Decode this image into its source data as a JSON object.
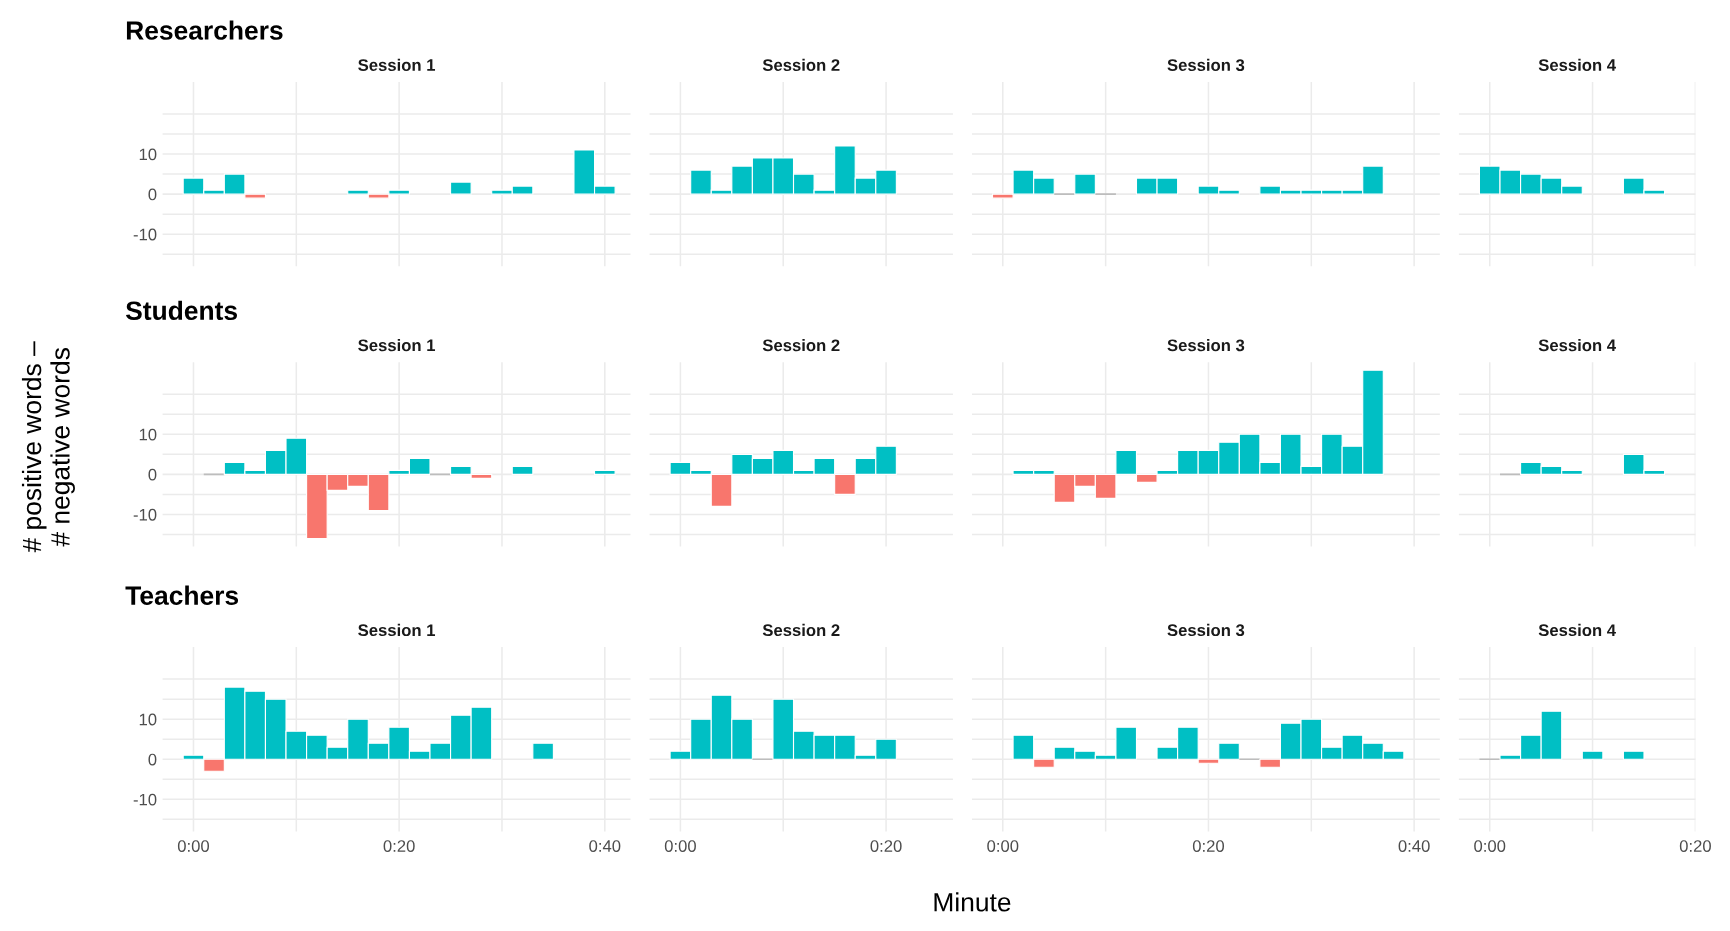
{
  "chart_data": [
    {
      "type": "bar",
      "title": "Session 1",
      "annotations": [
        "Researchers"
      ],
      "tick_labels": "y",
      "grid": true,
      "xlim": [
        -3,
        42.5
      ],
      "xticks": [
        {
          "value": 0,
          "label": null
        },
        {
          "value": 10,
          "label": null
        },
        {
          "value": 20,
          "label": null
        },
        {
          "value": 30,
          "label": null
        },
        {
          "value": 40,
          "label": null
        }
      ],
      "ylim": [
        -18,
        28
      ],
      "yticks": [
        {
          "value": -15,
          "label": null
        },
        -10,
        {
          "value": -5,
          "label": null
        },
        0,
        {
          "value": 5,
          "label": null
        },
        10,
        {
          "value": 15,
          "label": null
        },
        {
          "value": 20,
          "label": null
        }
      ],
      "x": [
        0,
        2,
        4,
        6,
        16,
        18,
        20,
        26,
        30,
        32,
        38,
        40
      ],
      "values": [
        4,
        1,
        5,
        -1,
        1,
        -1,
        1,
        3,
        1,
        2,
        11,
        2
      ],
      "colors": [
        "#00bfc4",
        "#00bfc4",
        "#00bfc4",
        "#f8766d",
        "#00bfc4",
        "#f8766d",
        "#00bfc4",
        "#00bfc4",
        "#00bfc4",
        "#00bfc4",
        "#00bfc4",
        "#00bfc4"
      ]
    },
    {
      "type": "bar",
      "title": "Session 2",
      "tick_labels": false,
      "grid": true,
      "xlim": [
        -3,
        26.5
      ],
      "xticks": [
        {
          "value": 0,
          "label": null
        },
        {
          "value": 10,
          "label": null
        },
        {
          "value": 20,
          "label": null
        }
      ],
      "ylim": [
        -18,
        28
      ],
      "yticks": [
        {
          "value": -15,
          "label": null
        },
        {
          "value": -10,
          "label": null
        },
        {
          "value": -5,
          "label": null
        },
        {
          "value": 0,
          "label": null
        },
        {
          "value": 5,
          "label": null
        },
        {
          "value": 10,
          "label": null
        },
        {
          "value": 15,
          "label": null
        },
        {
          "value": 20,
          "label": null
        }
      ],
      "x": [
        2,
        4,
        6,
        8,
        10,
        12,
        14,
        16,
        18,
        20
      ],
      "values": [
        6,
        1,
        7,
        9,
        9,
        5,
        1,
        12,
        4,
        6
      ],
      "colors": [
        "#00bfc4",
        "#00bfc4",
        "#00bfc4",
        "#00bfc4",
        "#00bfc4",
        "#00bfc4",
        "#00bfc4",
        "#00bfc4",
        "#00bfc4",
        "#00bfc4"
      ]
    },
    {
      "type": "bar",
      "title": "Session 3",
      "tick_labels": false,
      "grid": true,
      "xlim": [
        -3,
        42.5
      ],
      "xticks": [
        {
          "value": 0,
          "label": null
        },
        {
          "value": 10,
          "label": null
        },
        {
          "value": 20,
          "label": null
        },
        {
          "value": 30,
          "label": null
        },
        {
          "value": 40,
          "label": null
        }
      ],
      "ylim": [
        -18,
        28
      ],
      "yticks": [
        {
          "value": -15,
          "label": null
        },
        {
          "value": -10,
          "label": null
        },
        {
          "value": -5,
          "label": null
        },
        {
          "value": 0,
          "label": null
        },
        {
          "value": 5,
          "label": null
        },
        {
          "value": 10,
          "label": null
        },
        {
          "value": 15,
          "label": null
        },
        {
          "value": 20,
          "label": null
        }
      ],
      "x": [
        0,
        2,
        4,
        6,
        8,
        10,
        14,
        16,
        20,
        22,
        26,
        28,
        30,
        32,
        34,
        36
      ],
      "values": [
        -1,
        6,
        4,
        0,
        5,
        0,
        4,
        4,
        2,
        1,
        2,
        1,
        1,
        1,
        1,
        7
      ],
      "colors": [
        "#f8766d",
        "#00bfc4",
        "#00bfc4",
        "#bdbdbd",
        "#00bfc4",
        "#bdbdbd",
        "#00bfc4",
        "#00bfc4",
        "#00bfc4",
        "#00bfc4",
        "#00bfc4",
        "#00bfc4",
        "#00bfc4",
        "#00bfc4",
        "#00bfc4",
        "#00bfc4"
      ]
    },
    {
      "type": "bar",
      "title": "Session 4",
      "tick_labels": false,
      "grid": true,
      "xlim": [
        -3,
        20
      ],
      "xticks": [
        {
          "value": 0,
          "label": null
        },
        {
          "value": 10,
          "label": null
        },
        {
          "value": 20,
          "label": null
        }
      ],
      "ylim": [
        -18,
        28
      ],
      "yticks": [
        {
          "value": -15,
          "label": null
        },
        {
          "value": -10,
          "label": null
        },
        {
          "value": -5,
          "label": null
        },
        {
          "value": 0,
          "label": null
        },
        {
          "value": 5,
          "label": null
        },
        {
          "value": 10,
          "label": null
        },
        {
          "value": 15,
          "label": null
        },
        {
          "value": 20,
          "label": null
        }
      ],
      "x": [
        0,
        2,
        4,
        6,
        8,
        14,
        16
      ],
      "values": [
        7,
        6,
        5,
        4,
        2,
        4,
        1
      ],
      "colors": [
        "#00bfc4",
        "#00bfc4",
        "#00bfc4",
        "#00bfc4",
        "#00bfc4",
        "#00bfc4",
        "#00bfc4"
      ]
    },
    {
      "type": "bar",
      "title": "Session 1",
      "annotations": [
        "Students"
      ],
      "ylabel": "# positive words –\n# negative words",
      "tick_labels": "y",
      "grid": true,
      "xlim": [
        -3,
        42.5
      ],
      "xticks": [
        {
          "value": 0,
          "label": null
        },
        {
          "value": 10,
          "label": null
        },
        {
          "value": 20,
          "label": null
        },
        {
          "value": 30,
          "label": null
        },
        {
          "value": 40,
          "label": null
        }
      ],
      "ylim": [
        -18,
        28
      ],
      "yticks": [
        {
          "value": -15,
          "label": null
        },
        -10,
        {
          "value": -5,
          "label": null
        },
        0,
        {
          "value": 5,
          "label": null
        },
        10,
        {
          "value": 15,
          "label": null
        },
        {
          "value": 20,
          "label": null
        }
      ],
      "x": [
        2,
        4,
        6,
        8,
        10,
        12,
        14,
        16,
        18,
        20,
        22,
        24,
        26,
        28,
        32,
        40
      ],
      "values": [
        0,
        3,
        1,
        6,
        9,
        -16,
        -4,
        -3,
        -9,
        1,
        4,
        0,
        2,
        -1,
        2,
        1
      ],
      "colors": [
        "#bdbdbd",
        "#00bfc4",
        "#00bfc4",
        "#00bfc4",
        "#00bfc4",
        "#f8766d",
        "#f8766d",
        "#f8766d",
        "#f8766d",
        "#00bfc4",
        "#00bfc4",
        "#bdbdbd",
        "#00bfc4",
        "#f8766d",
        "#00bfc4",
        "#00bfc4"
      ]
    },
    {
      "type": "bar",
      "title": "Session 2",
      "tick_labels": false,
      "grid": true,
      "xlim": [
        -3,
        26.5
      ],
      "xticks": [
        {
          "value": 0,
          "label": null
        },
        {
          "value": 10,
          "label": null
        },
        {
          "value": 20,
          "label": null
        }
      ],
      "ylim": [
        -18,
        28
      ],
      "yticks": [
        {
          "value": -15,
          "label": null
        },
        {
          "value": -10,
          "label": null
        },
        {
          "value": -5,
          "label": null
        },
        {
          "value": 0,
          "label": null
        },
        {
          "value": 5,
          "label": null
        },
        {
          "value": 10,
          "label": null
        },
        {
          "value": 15,
          "label": null
        },
        {
          "value": 20,
          "label": null
        }
      ],
      "x": [
        0,
        2,
        4,
        6,
        8,
        10,
        12,
        14,
        16,
        18,
        20
      ],
      "values": [
        3,
        1,
        -8,
        5,
        4,
        6,
        1,
        4,
        -5,
        4,
        7
      ],
      "colors": [
        "#00bfc4",
        "#00bfc4",
        "#f8766d",
        "#00bfc4",
        "#00bfc4",
        "#00bfc4",
        "#00bfc4",
        "#00bfc4",
        "#f8766d",
        "#00bfc4",
        "#00bfc4"
      ]
    },
    {
      "type": "bar",
      "title": "Session 3",
      "tick_labels": false,
      "grid": true,
      "xlim": [
        -3,
        42.5
      ],
      "xticks": [
        {
          "value": 0,
          "label": null
        },
        {
          "value": 10,
          "label": null
        },
        {
          "value": 20,
          "label": null
        },
        {
          "value": 30,
          "label": null
        },
        {
          "value": 40,
          "label": null
        }
      ],
      "ylim": [
        -18,
        28
      ],
      "yticks": [
        {
          "value": -15,
          "label": null
        },
        {
          "value": -10,
          "label": null
        },
        {
          "value": -5,
          "label": null
        },
        {
          "value": 0,
          "label": null
        },
        {
          "value": 5,
          "label": null
        },
        {
          "value": 10,
          "label": null
        },
        {
          "value": 15,
          "label": null
        },
        {
          "value": 20,
          "label": null
        }
      ],
      "x": [
        2,
        4,
        6,
        8,
        10,
        12,
        14,
        16,
        18,
        20,
        22,
        24,
        26,
        28,
        30,
        32,
        34,
        36
      ],
      "values": [
        1,
        1,
        -7,
        -3,
        -6,
        6,
        -2,
        1,
        6,
        6,
        8,
        10,
        3,
        10,
        2,
        10,
        7,
        26
      ],
      "colors": [
        "#00bfc4",
        "#00bfc4",
        "#f8766d",
        "#f8766d",
        "#f8766d",
        "#00bfc4",
        "#f8766d",
        "#00bfc4",
        "#00bfc4",
        "#00bfc4",
        "#00bfc4",
        "#00bfc4",
        "#00bfc4",
        "#00bfc4",
        "#00bfc4",
        "#00bfc4",
        "#00bfc4",
        "#00bfc4"
      ]
    },
    {
      "type": "bar",
      "title": "Session 4",
      "tick_labels": false,
      "grid": true,
      "xlim": [
        -3,
        20
      ],
      "xticks": [
        {
          "value": 0,
          "label": null
        },
        {
          "value": 10,
          "label": null
        },
        {
          "value": 20,
          "label": null
        }
      ],
      "ylim": [
        -18,
        28
      ],
      "yticks": [
        {
          "value": -15,
          "label": null
        },
        {
          "value": -10,
          "label": null
        },
        {
          "value": -5,
          "label": null
        },
        {
          "value": 0,
          "label": null
        },
        {
          "value": 5,
          "label": null
        },
        {
          "value": 10,
          "label": null
        },
        {
          "value": 15,
          "label": null
        },
        {
          "value": 20,
          "label": null
        }
      ],
      "x": [
        2,
        4,
        6,
        8,
        14,
        16
      ],
      "values": [
        0,
        3,
        2,
        1,
        5,
        1
      ],
      "colors": [
        "#bdbdbd",
        "#00bfc4",
        "#00bfc4",
        "#00bfc4",
        "#00bfc4",
        "#00bfc4"
      ]
    },
    {
      "type": "bar",
      "title": "Session 1",
      "annotations": [
        "Teachers"
      ],
      "grid": true,
      "xlim": [
        -3,
        42.5
      ],
      "xticks": [
        {
          "value": 0,
          "label": "0:00"
        },
        {
          "value": 10,
          "label": null
        },
        {
          "value": 20,
          "label": "0:20"
        },
        {
          "value": 30,
          "label": null
        },
        {
          "value": 40,
          "label": "0:40"
        }
      ],
      "ylim": [
        -18,
        28
      ],
      "yticks": [
        {
          "value": -15,
          "label": null
        },
        -10,
        {
          "value": -5,
          "label": null
        },
        0,
        {
          "value": 5,
          "label": null
        },
        10,
        {
          "value": 15,
          "label": null
        },
        {
          "value": 20,
          "label": null
        }
      ],
      "x": [
        0,
        2,
        4,
        6,
        8,
        10,
        12,
        14,
        16,
        18,
        20,
        22,
        24,
        26,
        28,
        34
      ],
      "values": [
        1,
        -3,
        18,
        17,
        15,
        7,
        6,
        3,
        10,
        4,
        8,
        2,
        4,
        11,
        13,
        4
      ],
      "colors": [
        "#00bfc4",
        "#f8766d",
        "#00bfc4",
        "#00bfc4",
        "#00bfc4",
        "#00bfc4",
        "#00bfc4",
        "#00bfc4",
        "#00bfc4",
        "#00bfc4",
        "#00bfc4",
        "#00bfc4",
        "#00bfc4",
        "#00bfc4",
        "#00bfc4",
        "#00bfc4"
      ]
    },
    {
      "type": "bar",
      "title": "Session 2",
      "tick_labels": "x",
      "grid": true,
      "xlim": [
        -3,
        26.5
      ],
      "xticks": [
        {
          "value": 0,
          "label": "0:00"
        },
        {
          "value": 10,
          "label": null
        },
        {
          "value": 20,
          "label": "0:20"
        }
      ],
      "ylim": [
        -18,
        28
      ],
      "yticks": [
        {
          "value": -15,
          "label": null
        },
        {
          "value": -10,
          "label": null
        },
        {
          "value": -5,
          "label": null
        },
        {
          "value": 0,
          "label": null
        },
        {
          "value": 5,
          "label": null
        },
        {
          "value": 10,
          "label": null
        },
        {
          "value": 15,
          "label": null
        },
        {
          "value": 20,
          "label": null
        }
      ],
      "x": [
        0,
        2,
        4,
        6,
        8,
        10,
        12,
        14,
        16,
        18,
        20
      ],
      "values": [
        2,
        10,
        16,
        10,
        0,
        15,
        7,
        6,
        6,
        1,
        5
      ],
      "colors": [
        "#00bfc4",
        "#00bfc4",
        "#00bfc4",
        "#00bfc4",
        "#bdbdbd",
        "#00bfc4",
        "#00bfc4",
        "#00bfc4",
        "#00bfc4",
        "#00bfc4",
        "#00bfc4"
      ]
    },
    {
      "type": "bar",
      "title": "Session 3",
      "xlabel": "Minute",
      "tick_labels": "x",
      "grid": true,
      "xlim": [
        -3,
        42.5
      ],
      "xticks": [
        {
          "value": 0,
          "label": "0:00"
        },
        {
          "value": 10,
          "label": null
        },
        {
          "value": 20,
          "label": "0:20"
        },
        {
          "value": 30,
          "label": null
        },
        {
          "value": 40,
          "label": "0:40"
        }
      ],
      "ylim": [
        -18,
        28
      ],
      "yticks": [
        {
          "value": -15,
          "label": null
        },
        {
          "value": -10,
          "label": null
        },
        {
          "value": -5,
          "label": null
        },
        {
          "value": 0,
          "label": null
        },
        {
          "value": 5,
          "label": null
        },
        {
          "value": 10,
          "label": null
        },
        {
          "value": 15,
          "label": null
        },
        {
          "value": 20,
          "label": null
        }
      ],
      "x": [
        2,
        4,
        6,
        8,
        10,
        12,
        16,
        18,
        20,
        22,
        24,
        26,
        28,
        30,
        32,
        34,
        36,
        38
      ],
      "values": [
        6,
        -2,
        3,
        2,
        1,
        8,
        3,
        8,
        -1,
        4,
        0,
        -2,
        9,
        10,
        3,
        6,
        4,
        2
      ],
      "colors": [
        "#00bfc4",
        "#f8766d",
        "#00bfc4",
        "#00bfc4",
        "#00bfc4",
        "#00bfc4",
        "#00bfc4",
        "#00bfc4",
        "#f8766d",
        "#00bfc4",
        "#bdbdbd",
        "#f8766d",
        "#00bfc4",
        "#00bfc4",
        "#00bfc4",
        "#00bfc4",
        "#00bfc4",
        "#00bfc4"
      ]
    },
    {
      "type": "bar",
      "title": "Session 4",
      "tick_labels": "x",
      "grid": true,
      "xlim": [
        -3,
        20
      ],
      "xticks": [
        {
          "value": 0,
          "label": "0:00"
        },
        {
          "value": 10,
          "label": null
        },
        {
          "value": 20,
          "label": "0:20"
        }
      ],
      "ylim": [
        -18,
        28
      ],
      "yticks": [
        {
          "value": -15,
          "label": null
        },
        {
          "value": -10,
          "label": null
        },
        {
          "value": -5,
          "label": null
        },
        {
          "value": 0,
          "label": null
        },
        {
          "value": 5,
          "label": null
        },
        {
          "value": 10,
          "label": null
        },
        {
          "value": 15,
          "label": null
        },
        {
          "value": 20,
          "label": null
        }
      ],
      "x": [
        0,
        2,
        4,
        6,
        10,
        14
      ],
      "values": [
        0,
        1,
        6,
        12,
        2,
        2
      ],
      "colors": [
        "#bdbdbd",
        "#00bfc4",
        "#00bfc4",
        "#00bfc4",
        "#00bfc4",
        "#00bfc4"
      ]
    }
  ]
}
